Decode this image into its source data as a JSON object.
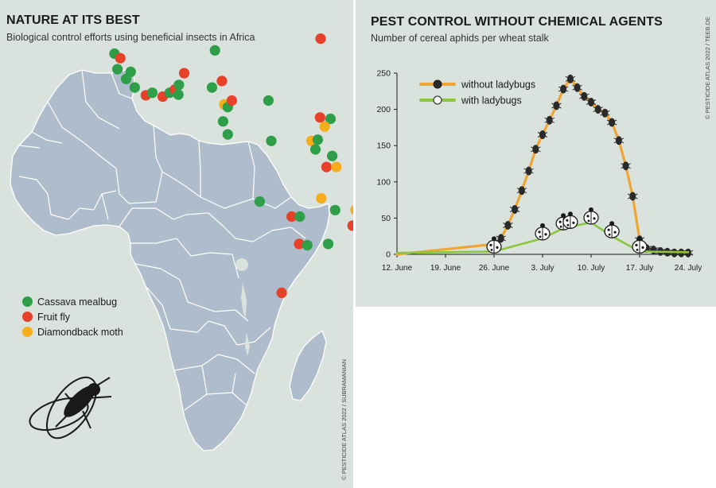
{
  "map": {
    "title": "NATURE AT ITS BEST",
    "subtitle": "Biological control efforts using beneficial insects in Africa",
    "credit": "© PESTICIDE ATLAS 2022 / SUBRAMANIAN",
    "legend": [
      {
        "label": "Cassava mealbug",
        "color": "#2e9e48"
      },
      {
        "label": "Fruit fly",
        "color": "#e8412a"
      },
      {
        "label": "Diamondback moth",
        "color": "#f6ad1c"
      }
    ],
    "colors": {
      "land": "#aebccb",
      "border": "#ffffff",
      "background": "#d9e2dc"
    },
    "icon": "fly-icon"
  },
  "chart": {
    "title": "PEST CONTROL WITHOUT CHEMICAL AGENTS",
    "subtitle": "Number of cereal aphids per wheat stalk",
    "credit": "© PESTICIDE ATLAS 2022 / TEEB.DE"
  },
  "chart_data": {
    "type": "line",
    "title": "PEST CONTROL WITHOUT CHEMICAL AGENTS",
    "subtitle": "Number of cereal aphids per wheat stalk",
    "xlabel": "",
    "ylabel": "",
    "ylim": [
      0,
      250
    ],
    "yticks": [
      "0",
      "50",
      "100",
      "150",
      "200",
      "250"
    ],
    "xticks": [
      "12. June",
      "19. June",
      "26. June",
      "3. July",
      "10. July",
      "17. July",
      "24. July"
    ],
    "grid": false,
    "legend_position": "top-left",
    "series": [
      {
        "name": "without ladybugs",
        "color": "#f2a431",
        "x": [
          "12. June",
          "26. June",
          "27. June",
          "28. June",
          "29. June",
          "30. June",
          "1. July",
          "2. July",
          "3. July",
          "4. July",
          "5. July",
          "6. July",
          "7. July",
          "8. July",
          "9. July",
          "10. July",
          "11. July",
          "12. July",
          "13. July",
          "14. July",
          "15. July",
          "16. July",
          "17. July",
          "18. July",
          "19. July",
          "20. July",
          "21. July",
          "22. July",
          "23. July",
          "24. July"
        ],
        "values": [
          0,
          14,
          22,
          40,
          62,
          88,
          115,
          145,
          165,
          185,
          205,
          228,
          242,
          230,
          218,
          210,
          200,
          195,
          182,
          157,
          122,
          80,
          20,
          8,
          6,
          4,
          3,
          2,
          2,
          2
        ]
      },
      {
        "name": "with ladybugs",
        "color": "#8cc63e",
        "x": [
          "12. June",
          "26. June",
          "3. July",
          "6. July",
          "7. July",
          "10. July",
          "13. July",
          "17. July",
          "24. July"
        ],
        "values": [
          2,
          4,
          22,
          36,
          38,
          44,
          25,
          4,
          3
        ]
      }
    ]
  },
  "map_points": [
    {
      "c": "red",
      "lon": -6.0,
      "lat": 35.5
    },
    {
      "c": "green",
      "lon": -17.0,
      "lat": 14.7
    },
    {
      "c": "red",
      "lon": -16.0,
      "lat": 14.0
    },
    {
      "c": "green",
      "lon": -16.5,
      "lat": 12.3
    },
    {
      "c": "green",
      "lon": -14.2,
      "lat": 11.9
    },
    {
      "c": "green",
      "lon": -15.0,
      "lat": 10.8
    },
    {
      "c": "green",
      "lon": -13.5,
      "lat": 9.5
    },
    {
      "c": "red",
      "lon": -11.6,
      "lat": 8.3
    },
    {
      "c": "green",
      "lon": -10.5,
      "lat": 8.7
    },
    {
      "c": "red",
      "lon": -8.7,
      "lat": 8.1
    },
    {
      "c": "green",
      "lon": -7.5,
      "lat": 8.7
    },
    {
      "c": "red",
      "lon": -6.6,
      "lat": 9.2
    },
    {
      "c": "green",
      "lon": -6.0,
      "lat": 8.4
    },
    {
      "c": "green",
      "lon": -5.9,
      "lat": 9.9
    },
    {
      "c": "red",
      "lon": -5.0,
      "lat": 11.7
    },
    {
      "c": "green",
      "lon": 0.3,
      "lat": 15.2
    },
    {
      "c": "green",
      "lon": -0.2,
      "lat": 9.5
    },
    {
      "c": "red",
      "lon": 1.5,
      "lat": 10.5
    },
    {
      "c": "orange",
      "lon": 1.9,
      "lat": 6.9
    },
    {
      "c": "green",
      "lon": 2.5,
      "lat": 6.5
    },
    {
      "c": "red",
      "lon": 3.2,
      "lat": 7.5
    },
    {
      "c": "green",
      "lon": 1.7,
      "lat": 4.3
    },
    {
      "c": "green",
      "lon": 2.5,
      "lat": 2.3
    },
    {
      "c": "green",
      "lon": 9.5,
      "lat": 7.5
    },
    {
      "c": "red",
      "lon": 18.5,
      "lat": 17.0
    },
    {
      "c": "orange",
      "lon": 26.0,
      "lat": 9.5
    },
    {
      "c": "red",
      "lon": 18.4,
      "lat": 4.9
    },
    {
      "c": "green",
      "lon": 20.2,
      "lat": 4.7
    },
    {
      "c": "orange",
      "lon": 19.2,
      "lat": 3.5
    },
    {
      "c": "red",
      "lon": 29.0,
      "lat": 2.8
    },
    {
      "c": "orange",
      "lon": 26.0,
      "lat": 2.1
    },
    {
      "c": "green",
      "lon": 27.5,
      "lat": 1.3
    },
    {
      "c": "green",
      "lon": 10.0,
      "lat": 1.3
    },
    {
      "c": "orange",
      "lon": 16.9,
      "lat": 1.3
    },
    {
      "c": "green",
      "lon": 18.0,
      "lat": 1.5
    },
    {
      "c": "green",
      "lon": 17.6,
      "lat": 0.0
    },
    {
      "c": "green",
      "lon": 20.5,
      "lat": -1.0
    },
    {
      "c": "red",
      "lon": 19.5,
      "lat": -2.7
    },
    {
      "c": "orange",
      "lon": 21.2,
      "lat": -2.7
    },
    {
      "c": "green",
      "lon": 8.0,
      "lat": -8.0
    },
    {
      "c": "orange",
      "lon": 18.6,
      "lat": -7.5
    },
    {
      "c": "green",
      "lon": 21.0,
      "lat": -9.3
    },
    {
      "c": "orange",
      "lon": 24.5,
      "lat": -9.3
    },
    {
      "c": "red",
      "lon": 36.0,
      "lat": -9.4
    },
    {
      "c": "red",
      "lon": 13.5,
      "lat": -10.3
    },
    {
      "c": "green",
      "lon": 14.9,
      "lat": -10.3
    },
    {
      "c": "red",
      "lon": 24.0,
      "lat": -11.7
    },
    {
      "c": "red",
      "lon": 14.8,
      "lat": -14.5
    },
    {
      "c": "green",
      "lon": 16.2,
      "lat": -14.7
    },
    {
      "c": "green",
      "lon": 19.8,
      "lat": -14.5
    },
    {
      "c": "red",
      "lon": 11.8,
      "lat": -22.0
    }
  ]
}
